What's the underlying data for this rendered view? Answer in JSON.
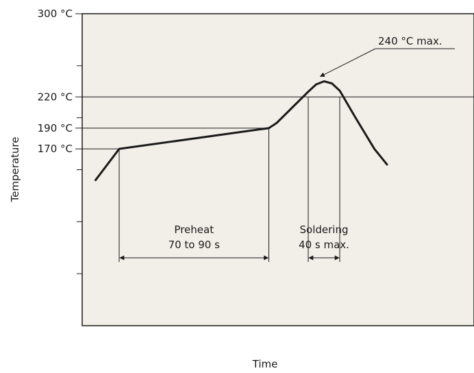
{
  "chart_data": {
    "type": "line",
    "title": "",
    "xlabel": "Time",
    "ylabel": "Temperature",
    "ylim": [
      0,
      300
    ],
    "x_ticks_shown": false,
    "grid": false,
    "background": "#f2efe8",
    "line_color": "#1a1a1a",
    "y_tick_values": [
      50,
      100,
      150,
      200,
      250
    ],
    "y_labels": [
      {
        "value": 300,
        "text": "300 °C"
      },
      {
        "value": 220,
        "text": "220 °C"
      },
      {
        "value": 190,
        "text": "190 °C"
      },
      {
        "value": 170,
        "text": "170 °C"
      }
    ],
    "series": [
      {
        "x": [
          15,
          30,
          125,
          130,
          140,
          150,
          155,
          160,
          165,
          170,
          180,
          192,
          200
        ],
        "y": [
          140,
          170,
          190,
          195,
          210,
          225,
          232,
          235,
          233,
          226,
          200,
          170,
          155
        ]
      }
    ],
    "annotations": {
      "peak": {
        "text": "240 °C max.",
        "x": 155,
        "y": 235
      },
      "preheat": {
        "line1": "Preheat",
        "line2": "70 to 90 s",
        "x_start": 30,
        "x_end": 125
      },
      "soldering": {
        "line1": "Soldering",
        "line2": "40 s max.",
        "x_start": 150,
        "x_end": 170
      }
    }
  }
}
